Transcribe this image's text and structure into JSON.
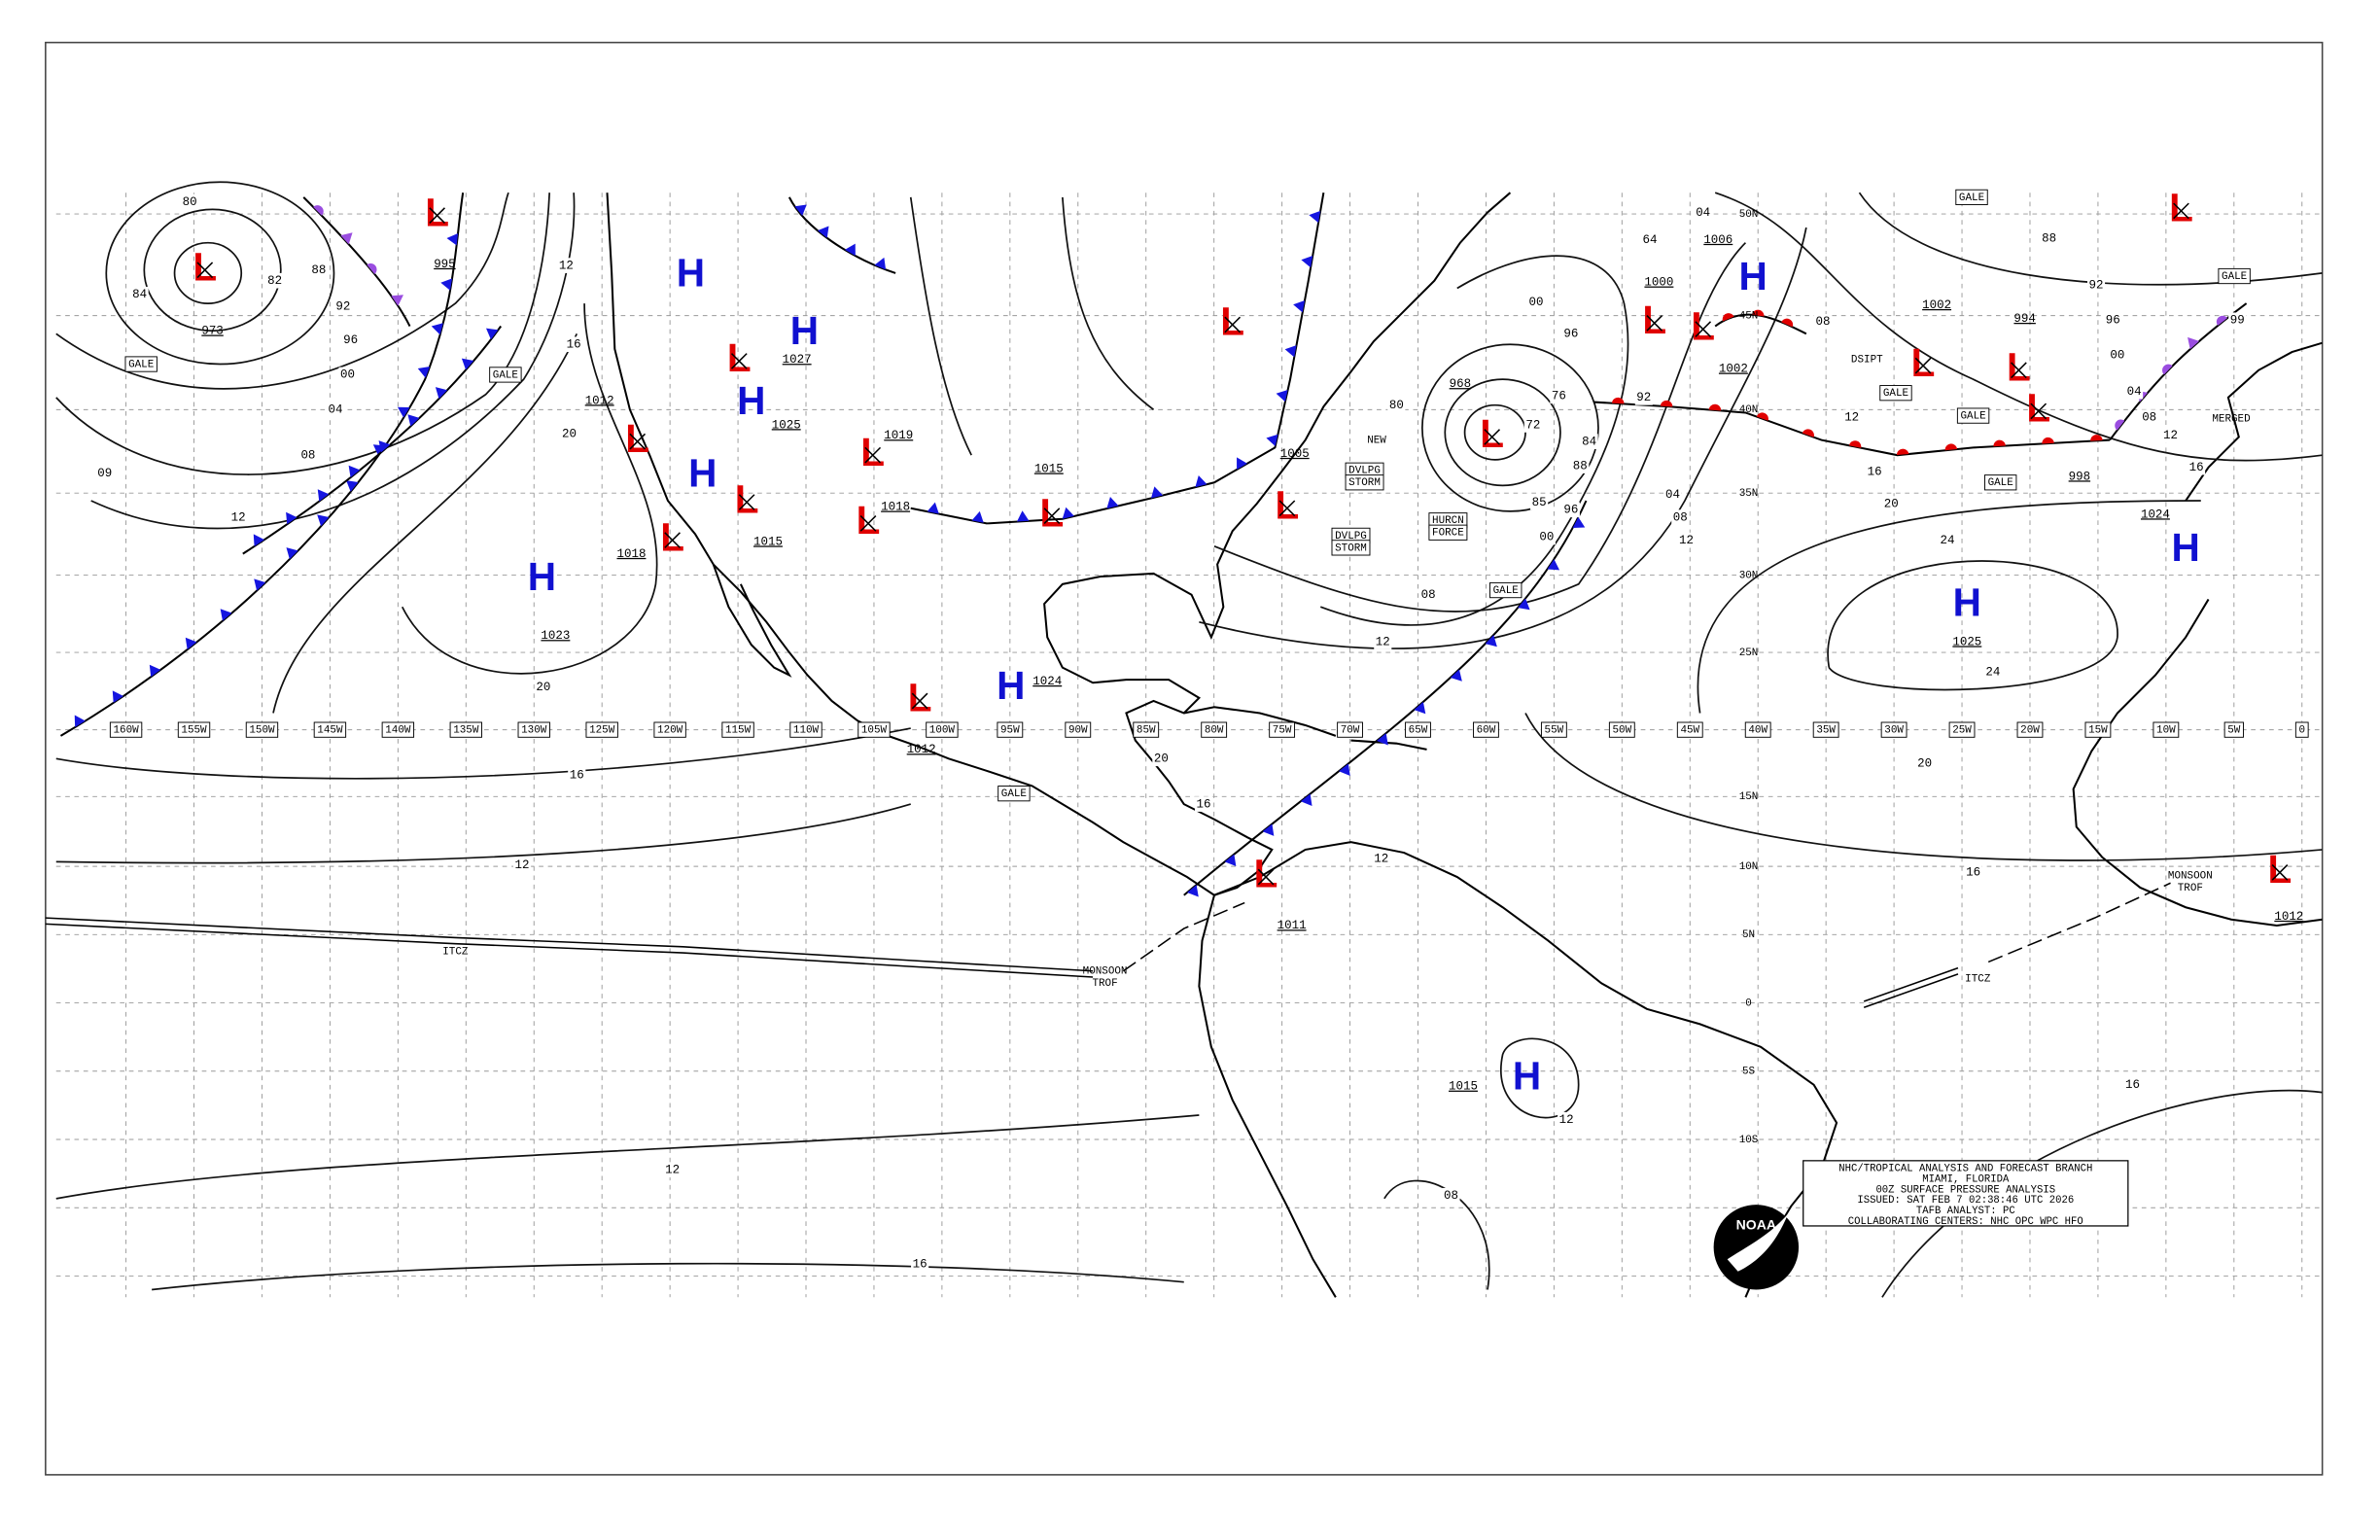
{
  "title_block": {
    "lines": [
      "NHC/TROPICAL ANALYSIS AND FORECAST BRANCH",
      "MIAMI, FLORIDA",
      "00Z SURFACE PRESSURE ANALYSIS",
      "ISSUED: SAT FEB 7 02:38:46 UTC 2026",
      "TAFB ANALYST: PC",
      "COLLABORATING CENTERS: NHC OPC WPC HFO"
    ]
  },
  "logo": "NOAA",
  "longitudes": [
    "160W",
    "155W",
    "150W",
    "145W",
    "140W",
    "135W",
    "130W",
    "125W",
    "120W",
    "115W",
    "110W",
    "105W",
    "100W",
    "95W",
    "90W",
    "85W",
    "80W",
    "75W",
    "70W",
    "65W",
    "60W",
    "55W",
    "50W",
    "45W",
    "40W",
    "35W",
    "30W",
    "25W",
    "20W",
    "15W",
    "10W",
    "5W",
    "0"
  ],
  "latitudes": [
    "50N",
    "45N",
    "40N",
    "35N",
    "30N",
    "25N",
    "15N",
    "10N",
    "5N",
    "0",
    "5S",
    "10S"
  ],
  "systems": [
    {
      "symbol": "L",
      "pressure": 973
    },
    {
      "symbol": "L",
      "pressure": 995
    },
    {
      "symbol": "H"
    },
    {
      "symbol": "H",
      "pressure": 1027
    },
    {
      "symbol": "L"
    },
    {
      "symbol": "H",
      "pressure": 1025
    },
    {
      "symbol": "L",
      "pressure": 1012
    },
    {
      "symbol": "H"
    },
    {
      "symbol": "L",
      "pressure": 1015
    },
    {
      "symbol": "L",
      "pressure": 1018
    },
    {
      "symbol": "H",
      "pressure": 1023
    },
    {
      "symbol": "L",
      "pressure": 1018
    },
    {
      "symbol": "H",
      "pressure": 1024
    },
    {
      "symbol": "L",
      "pressure": 1012
    },
    {
      "symbol": "L",
      "pressure": 1015
    },
    {
      "symbol": "L",
      "pressure": 1005
    },
    {
      "symbol": "L",
      "pressure": 968
    },
    {
      "symbol": "L",
      "pressure": 1000
    },
    {
      "symbol": "L",
      "pressure": 1002
    },
    {
      "symbol": "H",
      "pressure": 1006
    },
    {
      "symbol": "L",
      "pressure": 1002
    },
    {
      "symbol": "L",
      "pressure": 994
    },
    {
      "symbol": "L",
      "pressure": 998
    },
    {
      "symbol": "H",
      "pressure": 1025
    },
    {
      "symbol": "H",
      "pressure": 1024
    },
    {
      "symbol": "L"
    },
    {
      "symbol": "H",
      "pressure": 1015
    },
    {
      "symbol": "L",
      "pressure": 1011
    },
    {
      "symbol": "L",
      "pressure": 1012
    },
    {
      "symbol": "L"
    },
    {
      "symbol": "L",
      "pressure": 1019
    }
  ],
  "isobar_labels": [
    "80",
    "84",
    "82",
    "88",
    "92",
    "96",
    "00",
    "04",
    "08",
    "12",
    "09",
    "12",
    "16",
    "20",
    "20",
    "16",
    "12",
    "12",
    "16",
    "08",
    "12",
    "16",
    "16",
    "20",
    "24",
    "24",
    "20",
    "16",
    "12",
    "08",
    "04",
    "00",
    "96",
    "92",
    "88",
    "84",
    "80",
    "85",
    "00",
    "04",
    "08",
    "12",
    "08",
    "12",
    "16",
    "20",
    "88",
    "92",
    "96",
    "00",
    "04",
    "08",
    "12",
    "16",
    "99",
    "76",
    "72",
    "96",
    "64",
    "12"
  ],
  "annotations": [
    "GALE",
    "GALE",
    "GALE",
    "GALE",
    "GALE",
    "GALE",
    "GALE",
    "GALE",
    "GALE",
    "NEW",
    "DVLPG",
    "STORM",
    "DVLPG",
    "STORM",
    "HURCN",
    "FORCE",
    "DSIPT",
    "MONSOON",
    "TROF",
    "MONSOON",
    "TROF",
    "ITCZ",
    "ITCZ",
    "MERGED"
  ]
}
